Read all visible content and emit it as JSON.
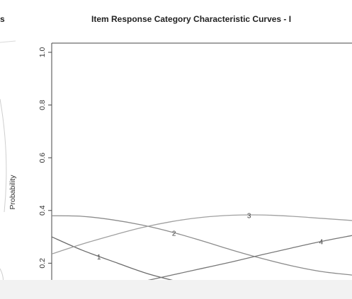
{
  "left_panel_title_fragment": "s",
  "chart_data": {
    "type": "line",
    "title": "Item Response Category Characteristic Curves - I",
    "ylabel": "Probability",
    "xlabel": "",
    "ylim": [
      0.15,
      1.0
    ],
    "yticks": [
      "1.0",
      "0.8",
      "0.6",
      "0.4",
      "0.2"
    ],
    "grid": false,
    "legend": "none",
    "x_range": [
      0,
      1
    ],
    "series": [
      {
        "name": "",
        "label": "1",
        "color": "#6b6b6b",
        "points": [
          [
            0.0,
            0.3
          ],
          [
            0.1,
            0.25
          ],
          [
            0.22,
            0.2
          ],
          [
            0.32,
            0.16
          ],
          [
            0.42,
            0.13
          ]
        ]
      },
      {
        "name": "",
        "label": "2",
        "color": "#8c8c8c",
        "points": [
          [
            0.0,
            0.38
          ],
          [
            0.1,
            0.378
          ],
          [
            0.2,
            0.365
          ],
          [
            0.3,
            0.345
          ],
          [
            0.4,
            0.318
          ],
          [
            0.5,
            0.285
          ],
          [
            0.6,
            0.25
          ],
          [
            0.7,
            0.218
          ],
          [
            0.8,
            0.19
          ],
          [
            0.9,
            0.168
          ],
          [
            1.0,
            0.155
          ]
        ]
      },
      {
        "name": "",
        "label": "3",
        "color": "#a0a0a0",
        "points": [
          [
            0.0,
            0.235
          ],
          [
            0.1,
            0.272
          ],
          [
            0.2,
            0.305
          ],
          [
            0.3,
            0.335
          ],
          [
            0.4,
            0.358
          ],
          [
            0.5,
            0.374
          ],
          [
            0.6,
            0.382
          ],
          [
            0.7,
            0.383
          ],
          [
            0.8,
            0.378
          ],
          [
            0.9,
            0.37
          ],
          [
            1.0,
            0.362
          ]
        ]
      },
      {
        "name": "",
        "label": "4",
        "color": "#777777",
        "points": [
          [
            0.3,
            0.13
          ],
          [
            0.4,
            0.155
          ],
          [
            0.5,
            0.18
          ],
          [
            0.6,
            0.205
          ],
          [
            0.7,
            0.232
          ],
          [
            0.8,
            0.258
          ],
          [
            0.9,
            0.283
          ],
          [
            1.0,
            0.305
          ]
        ]
      }
    ]
  }
}
